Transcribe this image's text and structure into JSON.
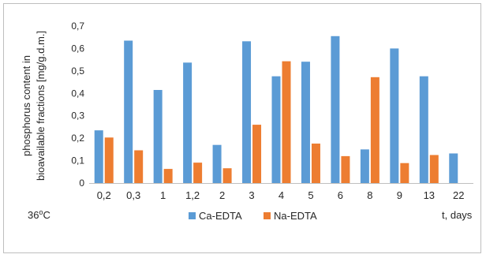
{
  "chart_data": {
    "type": "bar",
    "title": "",
    "ylabel_lines": [
      "phosphorus content in",
      "bioavailable fractions [mg/g.d.m.]"
    ],
    "xlabel": "t, days",
    "temperature": {
      "value": "36",
      "sup": "o",
      "unit": "C"
    },
    "ylim": [
      0,
      0.7
    ],
    "yticks": [
      "0",
      "0,1",
      "0,2",
      "0,3",
      "0,4",
      "0,5",
      "0,6",
      "0,7"
    ],
    "categories": [
      "0,2",
      "0,3",
      "1",
      "1,2",
      "2",
      "3",
      "4",
      "5",
      "6",
      "8",
      "9",
      "13",
      "22"
    ],
    "series": [
      {
        "name": "Ca-EDTA",
        "color": "#5b9bd5",
        "values": [
          0.235,
          0.635,
          0.415,
          0.537,
          0.17,
          0.632,
          0.476,
          0.541,
          0.655,
          0.15,
          0.6,
          0.476,
          0.132
        ]
      },
      {
        "name": "Na-EDTA",
        "color": "#ed7d31",
        "values": [
          0.203,
          0.146,
          0.063,
          0.091,
          0.066,
          0.26,
          0.543,
          0.176,
          0.12,
          0.472,
          0.089,
          0.125,
          null
        ]
      }
    ],
    "grid": false,
    "legend_position": "bottom"
  }
}
